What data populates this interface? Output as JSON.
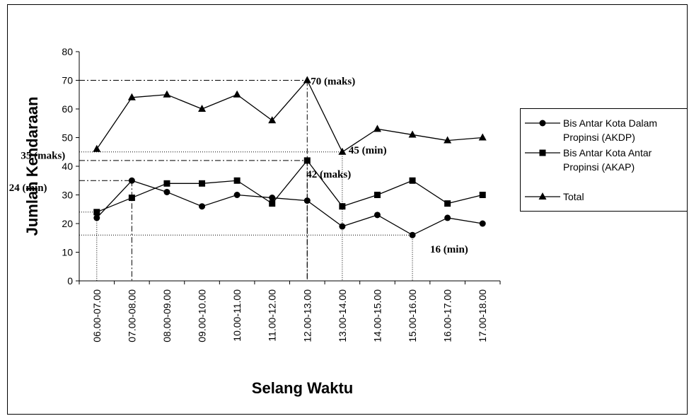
{
  "chart_data": {
    "type": "line",
    "categories": [
      "06.00-07.00",
      "07.00-08.00",
      "08.00-09.00",
      "09.00-10.00",
      "10.00-11.00",
      "11.00-12.00",
      "12.00-13.00",
      "13.00-14.00",
      "14.00-15.00",
      "15.00-16.00",
      "16.00-17.00",
      "17.00-18.00"
    ],
    "series": [
      {
        "name": "Bis Antar Kota Dalam Propinsi (AKDP)",
        "marker": "circle",
        "values": [
          22,
          35,
          31,
          26,
          30,
          29,
          28,
          19,
          23,
          16,
          22,
          20
        ]
      },
      {
        "name": "Bis Antar Kota Antar Propinsi (AKAP)",
        "marker": "square",
        "values": [
          24,
          29,
          34,
          34,
          35,
          27,
          42,
          26,
          30,
          35,
          27,
          30
        ]
      },
      {
        "name": "Total",
        "marker": "triangle",
        "values": [
          46,
          64,
          65,
          60,
          65,
          56,
          70,
          45,
          53,
          51,
          49,
          50
        ]
      }
    ],
    "xlabel": "Selang Waktu",
    "ylabel": "Jumlah Kendaraan",
    "ylim": [
      0,
      80
    ],
    "yticks": [
      0,
      10,
      20,
      30,
      40,
      50,
      60,
      70,
      80
    ],
    "grid": false,
    "legend_position": "right",
    "annotations": [
      {
        "text": "70 (maks)",
        "x_index": 6,
        "y": 70,
        "style": "dashdot"
      },
      {
        "text": "45 (min)",
        "x_index": 7,
        "y": 45,
        "style": "dotted"
      },
      {
        "text": "35 (maks)",
        "x_index": 1,
        "y": 35,
        "style": "dashdot"
      },
      {
        "text": "42 (maks)",
        "x_index": 6,
        "y": 42,
        "style": "dashdot"
      },
      {
        "text": "24 (min)",
        "x_index": 0,
        "y": 24,
        "style": "dotted"
      },
      {
        "text": "16 (min)",
        "x_index": 9,
        "y": 16,
        "style": "dotted"
      }
    ],
    "line_color": "#000000"
  }
}
